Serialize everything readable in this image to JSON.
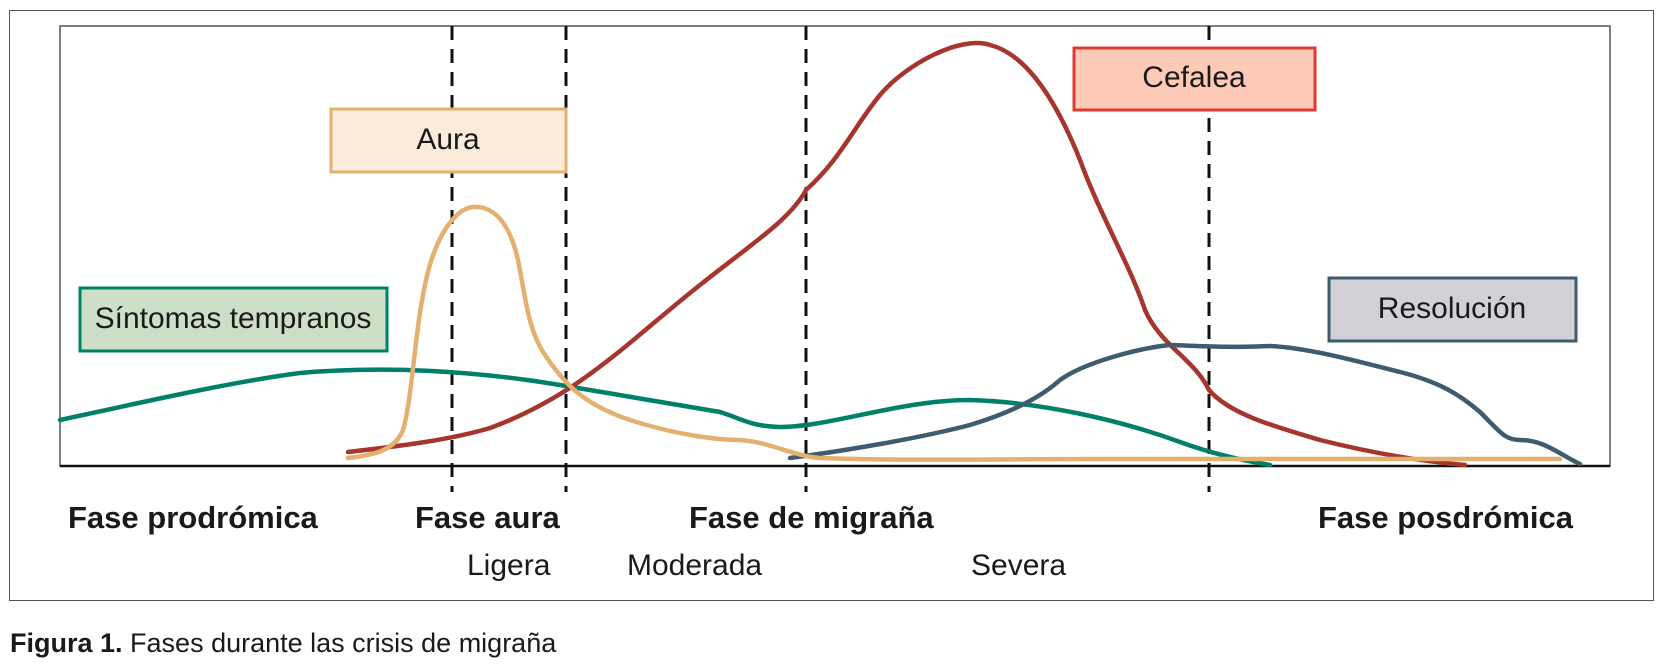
{
  "labels": {
    "aura": "Aura",
    "cefalea": "Cefalea",
    "sintomas": "Síntomas tempranos",
    "resolucion": "Resolución"
  },
  "phases": [
    "Fase prodrómica",
    "Fase aura",
    "Fase de migraña",
    "Fase posdrómica"
  ],
  "intensity": [
    "Ligera",
    "Moderada",
    "Severa"
  ],
  "caption": {
    "bold": "Figura 1.",
    "text": "Fases durante las crisis de migraña"
  },
  "colors": {
    "aura": "#e3b06f",
    "cefalea": "#a5352d",
    "sintomas": "#00806b",
    "resolucion": "#3f5b6e"
  }
}
